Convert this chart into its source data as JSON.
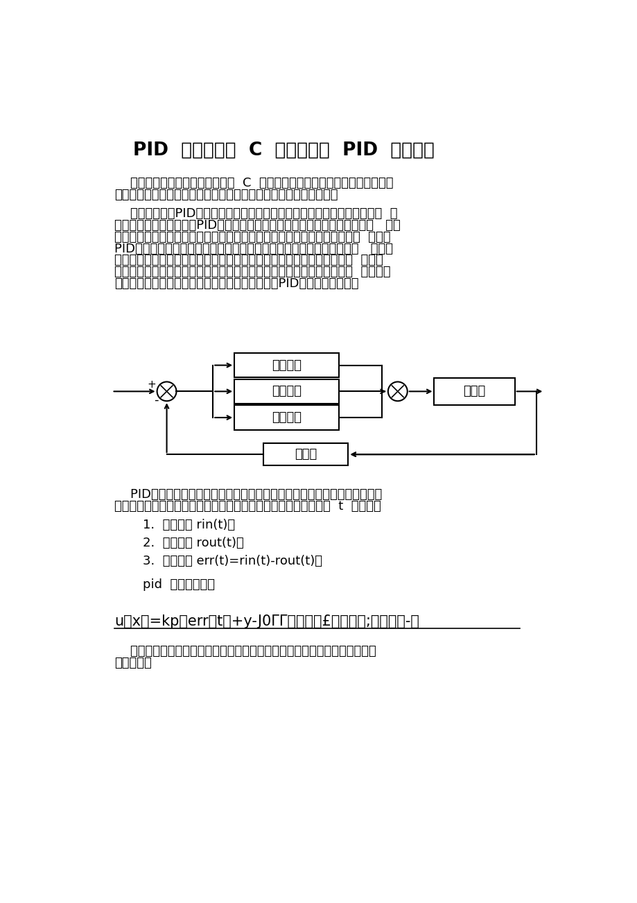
{
  "bg_color": "#ffffff",
  "title": "PID  控制算法的  C  语言实现一  PID  算法原理",
  "para1_lines": [
    "    最近两天在考虑一般控制算法的  C  语言实现问题，发现网络上尚没有一套完",
    "整的比较体系的讲解。于是总结了几天，整理一套思路分享给大家。"
  ],
  "para2_lines": [
    "    在工业应用中PID及其衍生算法是应用最广泛的算法之一，是当之无愧的万  能",
    "算法，如果能够熟练掌握PID算法的设计与实现过程，对于一般的研发人员来   讲，",
    "应该是足够应对一般研发问题了，而难能可贵的是，在我所接触的控制算法  当中，",
    "PID控制算法又是最简单，最能体现反馈思想的控制算法，可谓经典中的   经典。",
    "经典的未必是复杂的，经典的东西常常是简单的，而且是最简单的，想想  牛顿的",
    "力学三大定律吧，想想爱因斯坦的质能方程吧，何等的简单！简单的不是  原始的，",
    "简单的也不是落后的，简单到了美的程度。先看看PID算法的一般形式："
  ],
  "para3_lines": [
    "    PID的流程简单到了不能再简单的程度，通过误差信号控制被控量，而控制",
    "器本身就是比例、积分、微分三个环节的加和。这里我们规定（在  t  时刻）："
  ],
  "item1": "1.  输入量为 rin(t)；",
  "item2": "2.  输出量为 rout(t)；",
  "item3": "3.  偏差量为 err(t)=rin(t)-rout(t)；",
  "pid_rule": "pid  的控制规律为",
  "formula": "u（x）=kp（err（t）+y-J0ΓΓ（上）＊£＋丁。号;厂（上）-）",
  "para4_lines": [
    "    理解一下这个公式，主要从下面几个问题着手，为了便于理解，把控制环境",
    "具体一下："
  ],
  "box_bili": "比例环节",
  "box_jifen": "积分环节",
  "box_weifen": "微分环节",
  "box_zhixing": "执行器",
  "box_chuangan": "传感器",
  "plus_sign": "+",
  "minus_sign": "-"
}
